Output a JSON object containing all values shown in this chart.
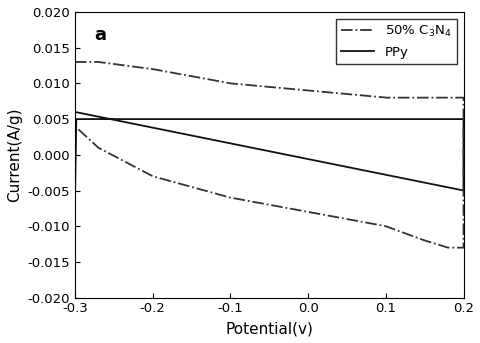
{
  "title_label": "a",
  "xlabel": "Potential(v)",
  "ylabel": "Current(A/g)",
  "xlim": [
    -0.3,
    0.2
  ],
  "ylim": [
    -0.02,
    0.02
  ],
  "xticks": [
    -0.3,
    -0.2,
    -0.1,
    0.0,
    0.1,
    0.2
  ],
  "yticks": [
    -0.02,
    -0.015,
    -0.01,
    -0.005,
    0.0,
    0.005,
    0.01,
    0.015,
    0.02
  ],
  "legend_entries": [
    "50% C$_3$N$_4$",
    "PPy"
  ],
  "line_styles": [
    "-.",
    "-"
  ],
  "line_colors": [
    "#333333",
    "#111111"
  ],
  "background_color": "#ffffff",
  "font_size": 11,
  "ppy_upper": {
    "x": [
      -0.3,
      0.2
    ],
    "y": [
      0.006,
      -0.005
    ]
  },
  "ppy_lower": {
    "x": [
      -0.3,
      0.2
    ],
    "y": [
      0.005,
      -0.006
    ]
  },
  "c3n4_upper_x": [
    -0.3,
    -0.27,
    -0.2,
    -0.1,
    0.0,
    0.1,
    0.2
  ],
  "c3n4_upper_y": [
    0.013,
    0.013,
    0.012,
    0.01,
    0.009,
    0.008,
    0.008
  ],
  "c3n4_lower_x": [
    -0.3,
    -0.27,
    -0.2,
    -0.1,
    0.0,
    0.1,
    0.15,
    0.18,
    0.2
  ],
  "c3n4_lower_y": [
    0.004,
    0.001,
    -0.003,
    -0.006,
    -0.008,
    -0.01,
    -0.012,
    -0.013,
    -0.013
  ]
}
